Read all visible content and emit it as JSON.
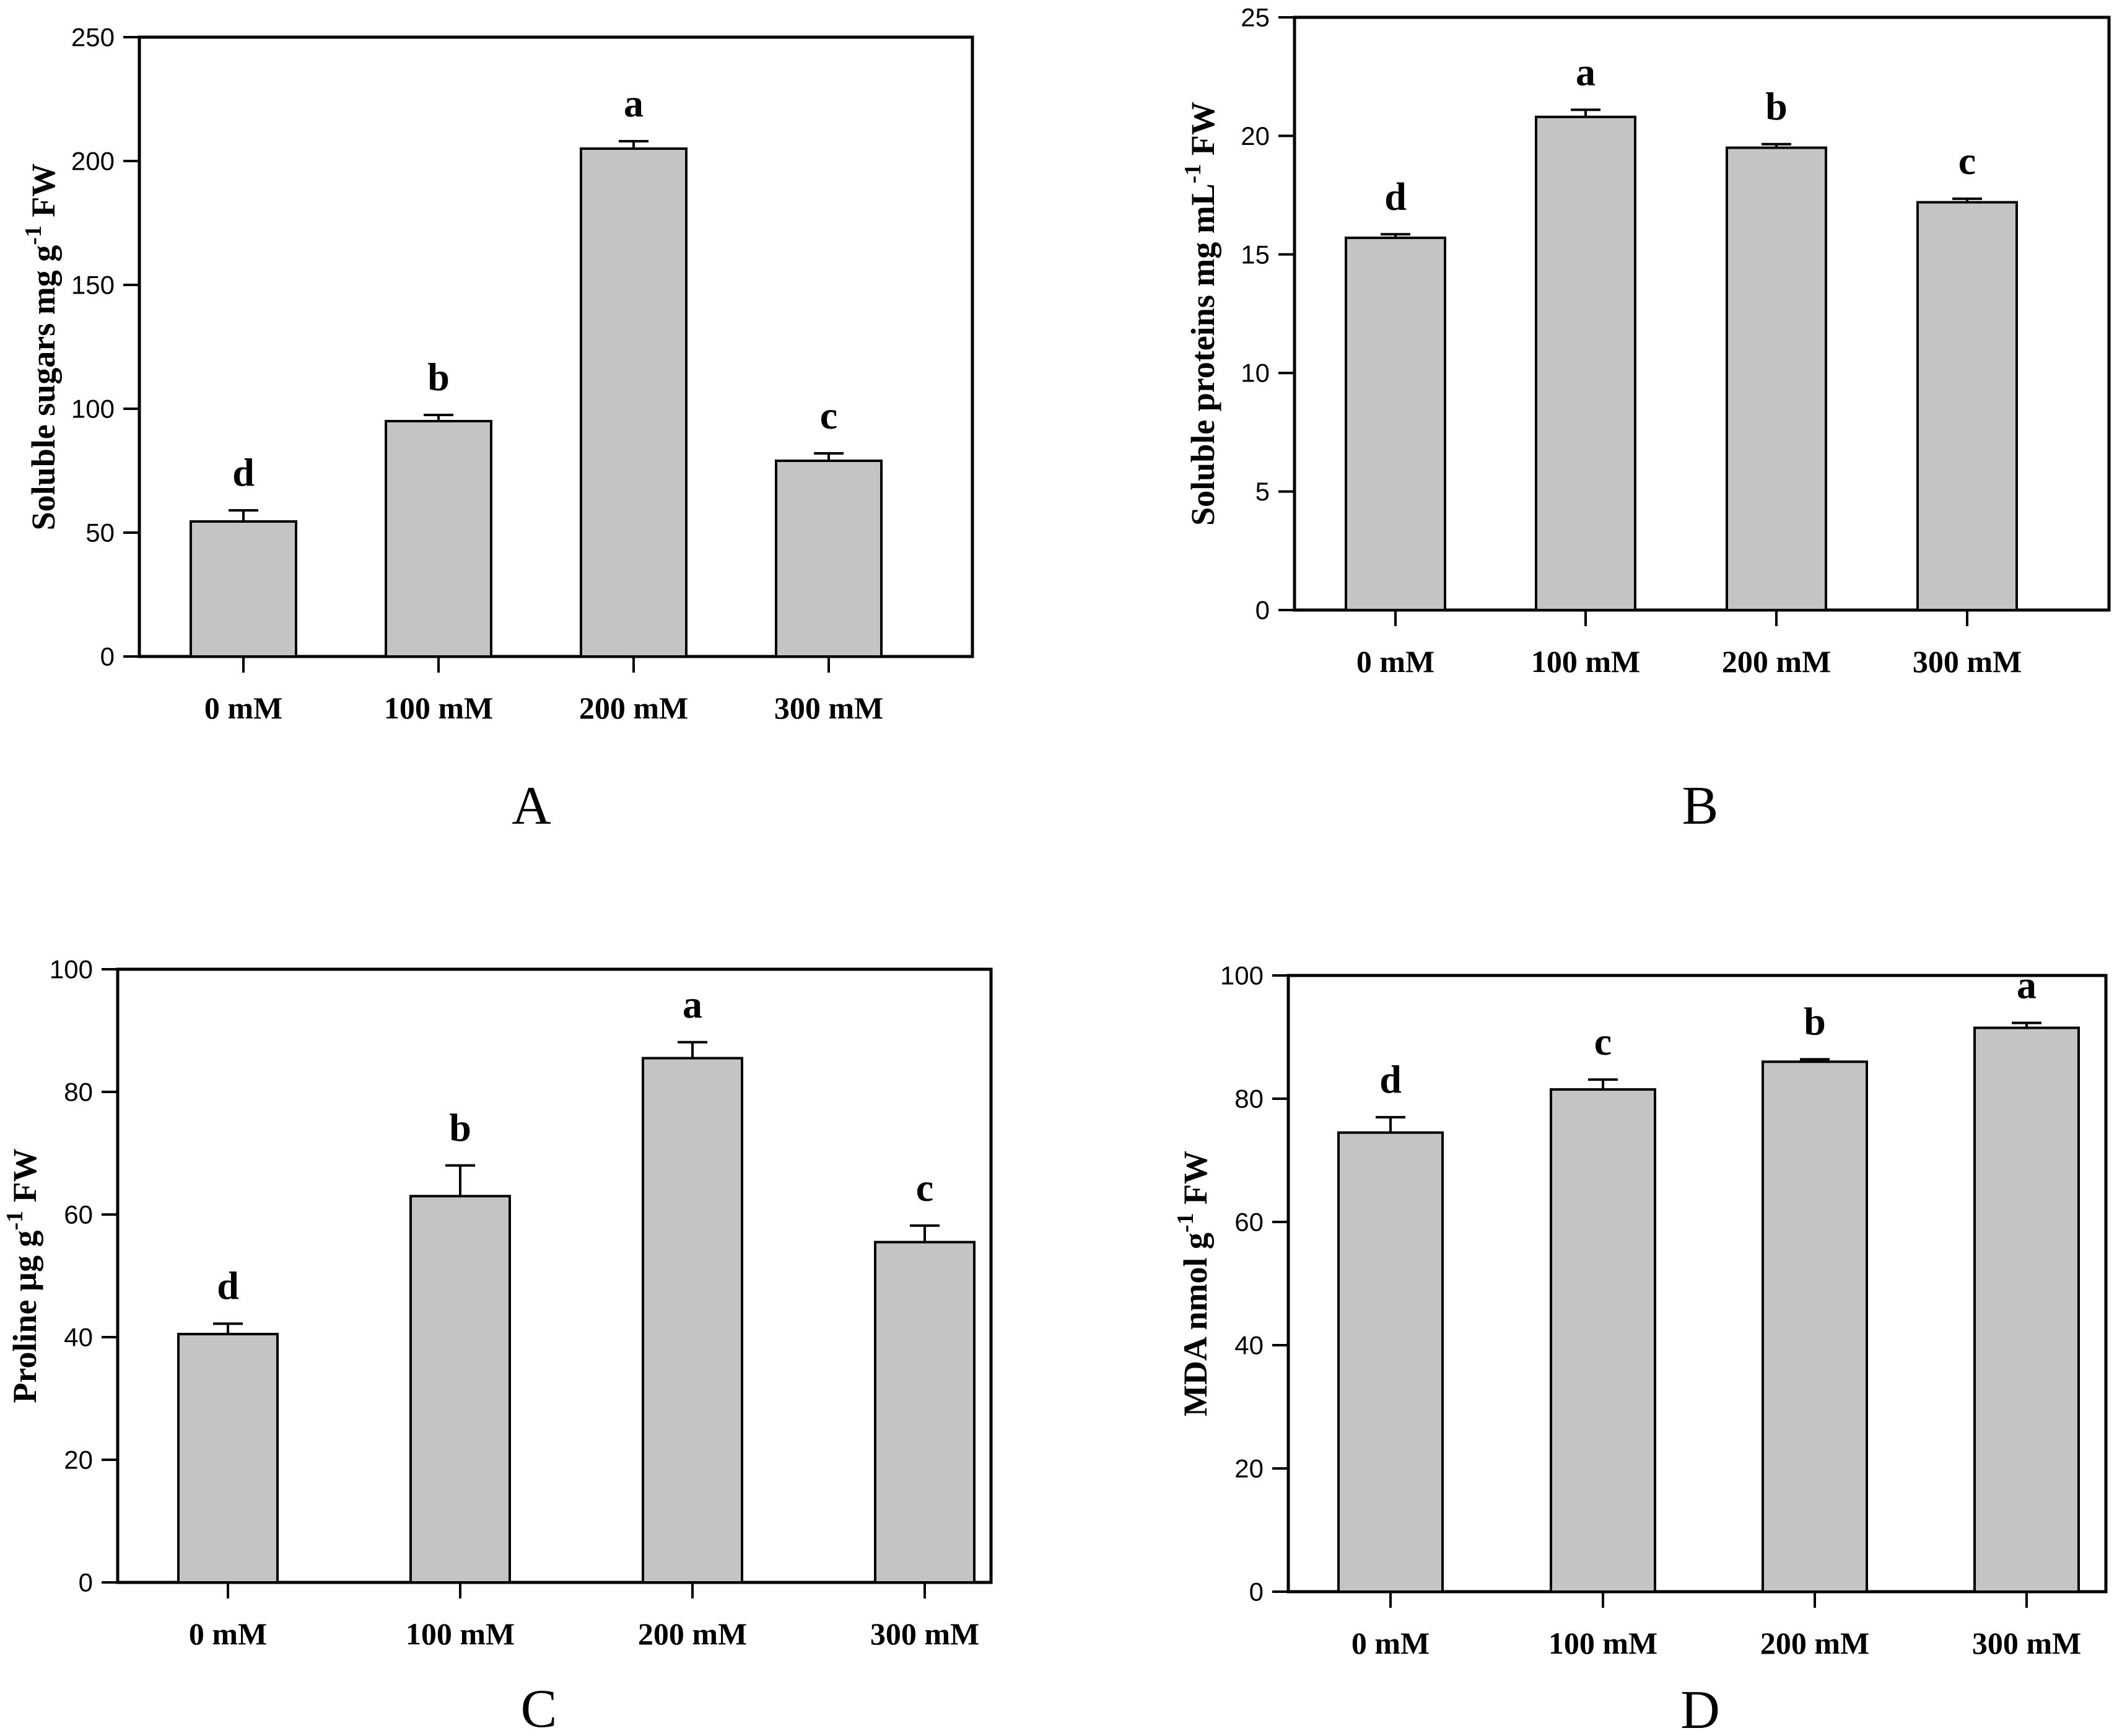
{
  "figure": {
    "background_color": "#ffffff",
    "axis_color": "#000000",
    "bar_fill_color": "#c4c4c4",
    "bar_edge_color": "#000000",
    "panel_letters": [
      "A",
      "B",
      "C",
      "D"
    ]
  },
  "chart_data": [
    {
      "panel_label": "A",
      "type": "bar",
      "title": "",
      "xlabel": "",
      "ylabel": "Soluble sugars mg g⁻¹ FW",
      "ylabel_parts": {
        "pre": "Soluble sugars mg g",
        "sup": "-1",
        "post": " FW"
      },
      "categories": [
        "0 mM",
        "100 mM",
        "200 mM",
        "300 mM"
      ],
      "values": [
        54.5,
        95,
        205,
        79
      ],
      "errors": [
        4.5,
        2.5,
        3,
        3
      ],
      "sig_letters": [
        "d",
        "b",
        "a",
        "c"
      ],
      "ylim": [
        0,
        250
      ],
      "yticks": [
        0,
        50,
        100,
        150,
        200,
        250
      ],
      "grid": false,
      "legend": "none"
    },
    {
      "panel_label": "B",
      "type": "bar",
      "title": "",
      "xlabel": "",
      "ylabel": "Soluble proteins mg mL⁻¹ FW",
      "ylabel_parts": {
        "pre": "Soluble proteins mg mL",
        "sup": "-1",
        "post": " FW"
      },
      "categories": [
        "0 mM",
        "100 mM",
        "200 mM",
        "300 mM"
      ],
      "values": [
        15.7,
        20.8,
        19.5,
        17.2
      ],
      "errors": [
        0.15,
        0.3,
        0.15,
        0.15
      ],
      "sig_letters": [
        "d",
        "a",
        "b",
        "c"
      ],
      "ylim": [
        0,
        25
      ],
      "yticks": [
        0,
        5,
        10,
        15,
        20,
        25
      ],
      "grid": false,
      "legend": "none"
    },
    {
      "panel_label": "C",
      "type": "bar",
      "title": "",
      "xlabel": "",
      "ylabel": "Proline µg g⁻¹ FW",
      "ylabel_parts": {
        "pre": "Proline µg g",
        "sup": "-1",
        "post": " FW"
      },
      "categories": [
        "0 mM",
        "100 mM",
        "200 mM",
        "300 mM"
      ],
      "values": [
        40.5,
        63,
        85.5,
        55.5
      ],
      "errors": [
        1.7,
        5,
        2.6,
        2.7
      ],
      "sig_letters": [
        "d",
        "b",
        "a",
        "c"
      ],
      "ylim": [
        0,
        100
      ],
      "yticks": [
        0,
        20,
        40,
        60,
        80,
        100
      ],
      "grid": false,
      "legend": "none"
    },
    {
      "panel_label": "D",
      "type": "bar",
      "title": "",
      "xlabel": "",
      "ylabel": "MDA nmol g⁻¹ FW",
      "ylabel_parts": {
        "pre": "MDA nmol g",
        "sup": "-1",
        "post": " FW"
      },
      "categories": [
        "0 mM",
        "100 mM",
        "200 mM",
        "300 mM"
      ],
      "values": [
        74.5,
        81.5,
        86,
        91.5
      ],
      "errors": [
        2.5,
        1.6,
        0.4,
        0.8
      ],
      "sig_letters": [
        "d",
        "c",
        "b",
        "a"
      ],
      "ylim": [
        0,
        100
      ],
      "yticks": [
        0,
        20,
        40,
        60,
        80,
        100
      ],
      "grid": false,
      "legend": "none"
    }
  ]
}
